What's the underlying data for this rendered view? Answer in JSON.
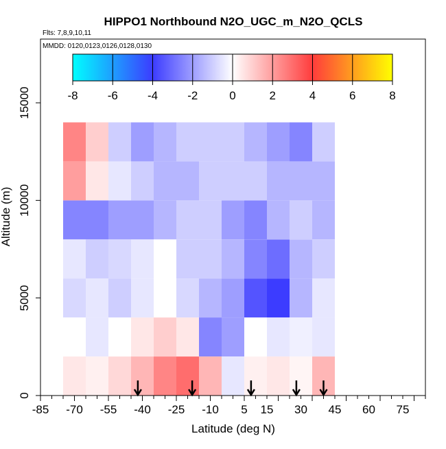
{
  "chart_data": {
    "type": "heatmap",
    "title": "HIPPO1 Northbound N2O_UGC_m_N2O_QCLS",
    "flights_label": "Flts: 7,8,9,10,11",
    "dates_label": "MMDD: 0120,0123,0126,0128,0130",
    "xlabel": "Latitude (deg N)",
    "ylabel": "Altitude (m)",
    "xlim": [
      -85,
      85
    ],
    "ylim": [
      0,
      17500
    ],
    "x_tick_labels": [
      "-85",
      "-70",
      "-55",
      "-40",
      "-25",
      "-10",
      "5",
      "15",
      "30",
      "45",
      "60",
      "75"
    ],
    "x_tick_values": [
      -85,
      -70,
      -55,
      -40,
      -25,
      -10,
      5,
      15,
      30,
      45,
      60,
      75
    ],
    "y_tick_labels": [
      "0",
      "5000",
      "10000",
      "15000"
    ],
    "y_tick_values": [
      0,
      5000,
      10000,
      15000
    ],
    "colorbar": {
      "range": [
        -8,
        8
      ],
      "tick_labels": [
        "-8",
        "-6",
        "-4",
        "-2",
        "0",
        "2",
        "4",
        "6",
        "8"
      ],
      "tick_values": [
        -8,
        -6,
        -4,
        -2,
        0,
        2,
        4,
        6,
        8
      ],
      "colors": [
        "#00ffff",
        "#3c3cff",
        "#ffffff",
        "#ff3c3c",
        "#ffff00"
      ]
    },
    "profile_latitudes": [
      -42,
      -18,
      8,
      28,
      40
    ],
    "lat_bins": [
      -70,
      -60,
      -50,
      -40,
      -30,
      -20,
      -10,
      0,
      10,
      20,
      30,
      40
    ],
    "alt_bins": [
      1000,
      3000,
      5000,
      7000,
      9000,
      11000,
      13000
    ],
    "grid_values": [
      [
        0.5,
        0.3,
        0.8,
        1.5,
        2.5,
        3.0,
        1.5,
        -0.5,
        0.3,
        0.5,
        0.2,
        1.5
      ],
      [
        0.0,
        -0.5,
        0.0,
        0.5,
        1.0,
        0.5,
        -2.5,
        -2.0,
        0.0,
        -0.5,
        -0.3,
        -0.5
      ],
      [
        -0.8,
        -0.5,
        -1.0,
        -0.5,
        0.0,
        -0.8,
        -1.5,
        -2.0,
        -3.5,
        -4.0,
        -1.5,
        -0.5
      ],
      [
        -0.5,
        -1.0,
        -0.8,
        -0.5,
        0.0,
        -1.0,
        -1.0,
        -1.5,
        -2.5,
        -3.0,
        -1.5,
        -1.0
      ],
      [
        -2.5,
        -2.5,
        -2.0,
        -2.0,
        -1.5,
        -1.0,
        -1.0,
        -2.0,
        -2.5,
        -1.5,
        -1.0,
        -1.5
      ],
      [
        2.0,
        0.5,
        -0.5,
        -1.0,
        -1.5,
        -1.5,
        -1.0,
        -1.0,
        -1.0,
        -1.5,
        -1.5,
        -1.5
      ],
      [
        2.5,
        1.0,
        -1.0,
        -2.0,
        -1.5,
        -1.0,
        -1.0,
        -1.0,
        -1.5,
        -2.0,
        -2.5,
        -1.0
      ]
    ]
  }
}
